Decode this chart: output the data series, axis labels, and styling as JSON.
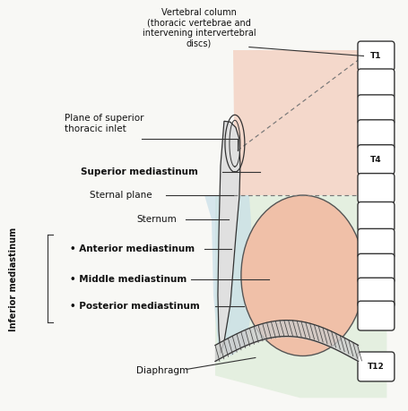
{
  "bg_color": "#f8f8f5",
  "pink_color": "#f2c4b0",
  "green_color": "#d5e8cf",
  "blue_color": "#c5dde8",
  "heart_color": "#f0c0a8",
  "vertebra_face": "#ffffff",
  "vertebra_edge": "#333333",
  "line_color": "#333333",
  "labels": {
    "vertebral_column": "Vertebral column\n(thoracic vertebrae and\nintervening intervertebral\ndiscs)",
    "plane_superior": "Plane of superior\nthoracic inlet",
    "superior_mediastinum": "Superior mediastinum",
    "sternal_plane": "Sternal plane",
    "sternum": "Sternum",
    "anterior": "• Anterior mediastinum",
    "middle": "• Middle mediastinum",
    "posterior": "• Posterior mediastinum",
    "diaphragm": "Diaphragm",
    "inferior": "Inferior mediastinum",
    "T1": "T1",
    "T4": "T4",
    "T12": "T12"
  }
}
